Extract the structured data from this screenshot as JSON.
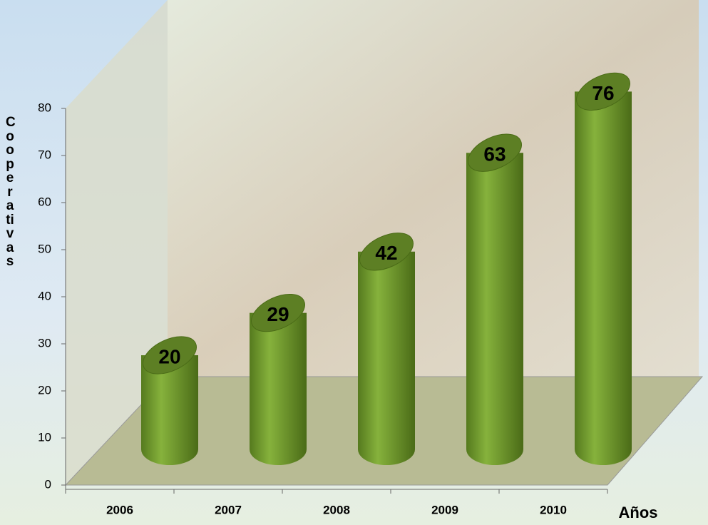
{
  "chart_data": {
    "type": "cylinder",
    "categories": [
      "2006",
      "2007",
      "2008",
      "2009",
      "2010"
    ],
    "values": [
      20,
      29,
      42,
      63,
      76
    ],
    "color": "#6f9a2c",
    "ylim": [
      0,
      80
    ],
    "yticks": [
      0,
      10,
      20,
      30,
      40,
      50,
      60,
      70,
      80
    ],
    "y_label": "Cooperativas",
    "x_label": "Años"
  }
}
